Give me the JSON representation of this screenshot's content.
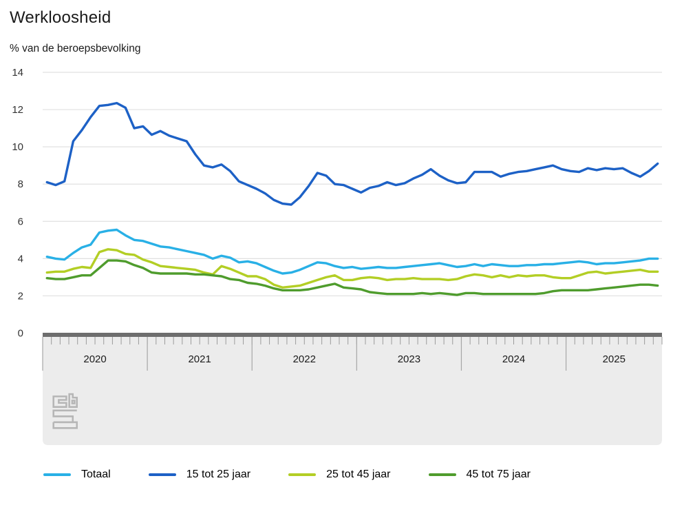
{
  "title": "Werkloosheid",
  "subtitle": "% van de beroepsbevolking",
  "source_logo": "cbs",
  "colors": {
    "totaal": "#29b0e6",
    "jong": "#1d61c6",
    "midden": "#b3ce25",
    "ouder": "#4f9c2d",
    "gridline": "#e0e0e0",
    "zero_axis_bar": "#6e6e6e",
    "axis_box": "#ececec",
    "tick": "#9b9b9b",
    "year_separator": "#a6a6a6",
    "axis_text": "#333333",
    "logo": "#b6b6b6"
  },
  "y_axis": {
    "ticks": [
      0,
      2,
      4,
      6,
      8,
      10,
      12,
      14
    ]
  },
  "x_axis": {
    "year_labels": [
      "2020",
      "2021",
      "2022",
      "2023",
      "2024",
      "2025"
    ]
  },
  "chart_data": {
    "type": "line",
    "title": "Werkloosheid",
    "ylabel": "% van de beroepsbevolking",
    "ylim": [
      0,
      14
    ],
    "y_ticks": [
      0,
      2,
      4,
      6,
      8,
      10,
      12,
      14
    ],
    "grid": true,
    "legend_position": "bottom",
    "x_start_month": "2020-01",
    "x_end_month": "2025-11",
    "x_unit": "month",
    "series": [
      {
        "name": "Totaal",
        "color": "#29b0e6",
        "values": [
          4.1,
          4.0,
          3.95,
          4.3,
          4.6,
          4.75,
          5.4,
          5.5,
          5.55,
          5.25,
          5.0,
          4.95,
          4.8,
          4.65,
          4.6,
          4.5,
          4.4,
          4.3,
          4.2,
          4.0,
          4.15,
          4.05,
          3.8,
          3.85,
          3.75,
          3.55,
          3.35,
          3.2,
          3.25,
          3.4,
          3.6,
          3.8,
          3.75,
          3.6,
          3.5,
          3.55,
          3.45,
          3.5,
          3.55,
          3.5,
          3.5,
          3.55,
          3.6,
          3.65,
          3.7,
          3.75,
          3.65,
          3.55,
          3.6,
          3.7,
          3.6,
          3.7,
          3.65,
          3.6,
          3.6,
          3.65,
          3.65,
          3.7,
          3.7,
          3.75,
          3.8,
          3.85,
          3.8,
          3.7,
          3.75,
          3.75,
          3.8,
          3.85,
          3.9,
          4.0,
          4.0
        ]
      },
      {
        "name": "15 tot 25 jaar",
        "color": "#1d61c6",
        "values": [
          8.1,
          7.95,
          8.15,
          10.3,
          10.9,
          11.6,
          12.2,
          12.25,
          12.35,
          12.1,
          11.0,
          11.1,
          10.65,
          10.85,
          10.6,
          10.45,
          10.3,
          9.6,
          9.0,
          8.9,
          9.05,
          8.7,
          8.15,
          7.95,
          7.75,
          7.5,
          7.15,
          6.95,
          6.9,
          7.3,
          7.9,
          8.6,
          8.45,
          8.0,
          7.95,
          7.75,
          7.55,
          7.8,
          7.9,
          8.1,
          7.95,
          8.05,
          8.3,
          8.5,
          8.8,
          8.45,
          8.2,
          8.05,
          8.1,
          8.65,
          8.65,
          8.65,
          8.4,
          8.55,
          8.65,
          8.7,
          8.8,
          8.9,
          9.0,
          8.8,
          8.7,
          8.65,
          8.85,
          8.75,
          8.85,
          8.8,
          8.85,
          8.6,
          8.4,
          8.7,
          9.1
        ]
      },
      {
        "name": "25 tot 45 jaar",
        "color": "#b3ce25",
        "values": [
          3.25,
          3.3,
          3.3,
          3.45,
          3.55,
          3.5,
          4.35,
          4.5,
          4.45,
          4.25,
          4.2,
          3.95,
          3.8,
          3.6,
          3.55,
          3.5,
          3.45,
          3.4,
          3.25,
          3.15,
          3.6,
          3.45,
          3.25,
          3.05,
          3.05,
          2.9,
          2.6,
          2.45,
          2.5,
          2.55,
          2.7,
          2.85,
          3.0,
          3.1,
          2.85,
          2.85,
          2.95,
          3.0,
          2.95,
          2.85,
          2.9,
          2.9,
          2.95,
          2.9,
          2.9,
          2.9,
          2.85,
          2.9,
          3.05,
          3.15,
          3.1,
          3.0,
          3.1,
          3.0,
          3.1,
          3.05,
          3.1,
          3.1,
          3.0,
          2.95,
          2.95,
          3.1,
          3.25,
          3.3,
          3.2,
          3.25,
          3.3,
          3.35,
          3.4,
          3.3,
          3.3
        ]
      },
      {
        "name": "45 tot 75 jaar",
        "color": "#4f9c2d",
        "values": [
          2.95,
          2.9,
          2.9,
          3.0,
          3.1,
          3.1,
          3.5,
          3.9,
          3.9,
          3.85,
          3.65,
          3.5,
          3.25,
          3.2,
          3.2,
          3.2,
          3.2,
          3.15,
          3.15,
          3.1,
          3.05,
          2.9,
          2.85,
          2.7,
          2.65,
          2.55,
          2.4,
          2.3,
          2.3,
          2.3,
          2.35,
          2.45,
          2.55,
          2.65,
          2.45,
          2.4,
          2.35,
          2.2,
          2.15,
          2.1,
          2.1,
          2.1,
          2.1,
          2.15,
          2.1,
          2.15,
          2.1,
          2.05,
          2.15,
          2.15,
          2.1,
          2.1,
          2.1,
          2.1,
          2.1,
          2.1,
          2.1,
          2.15,
          2.25,
          2.3,
          2.3,
          2.3,
          2.3,
          2.35,
          2.4,
          2.45,
          2.5,
          2.55,
          2.6,
          2.6,
          2.55
        ]
      }
    ]
  },
  "legend": {
    "items": [
      "Totaal",
      "15 tot 25 jaar",
      "25 tot 45 jaar",
      "45 tot 75 jaar"
    ]
  }
}
